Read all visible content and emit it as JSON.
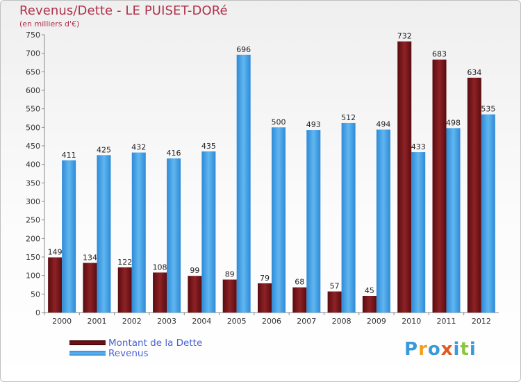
{
  "header": {
    "title": "Revenus/Dette - LE PUISET-DORé",
    "subtitle": "(en milliers d'€)"
  },
  "legend": {
    "items": [
      {
        "label": "Montant de la Dette",
        "color": "#7a1518"
      },
      {
        "label": "Revenus",
        "color": "#4aa6e8"
      }
    ]
  },
  "logo": {
    "text": "Proxiti",
    "letters": [
      {
        "ch": "P",
        "color": "#3a9ad9"
      },
      {
        "ch": "r",
        "color": "#f0a020"
      },
      {
        "ch": "o",
        "color": "#3a9ad9"
      },
      {
        "ch": "x",
        "color": "#e05a20"
      },
      {
        "ch": "i",
        "color": "#3a9ad9"
      },
      {
        "ch": "t",
        "color": "#8cc63f"
      },
      {
        "ch": "i",
        "color": "#3a9ad9"
      }
    ]
  },
  "chart_data": {
    "type": "bar",
    "title": "Revenus/Dette - LE PUISET-DORé",
    "subtitle": "(en milliers d'€)",
    "xlabel": "",
    "ylabel": "",
    "ylim": [
      0,
      750
    ],
    "ytick_step": 50,
    "grid": false,
    "legend_position": "bottom-left",
    "categories": [
      "2000",
      "2001",
      "2002",
      "2003",
      "2004",
      "2005",
      "2006",
      "2007",
      "2008",
      "2009",
      "2010",
      "2011",
      "2012"
    ],
    "series": [
      {
        "name": "Montant de la Dette",
        "color": "#7a1518",
        "values": [
          149,
          134,
          122,
          108,
          99,
          89,
          79,
          68,
          57,
          45,
          732,
          683,
          634
        ]
      },
      {
        "name": "Revenus",
        "color": "#4aa6e8",
        "values": [
          411,
          425,
          432,
          416,
          435,
          696,
          500,
          493,
          512,
          494,
          433,
          498,
          535
        ]
      }
    ]
  }
}
